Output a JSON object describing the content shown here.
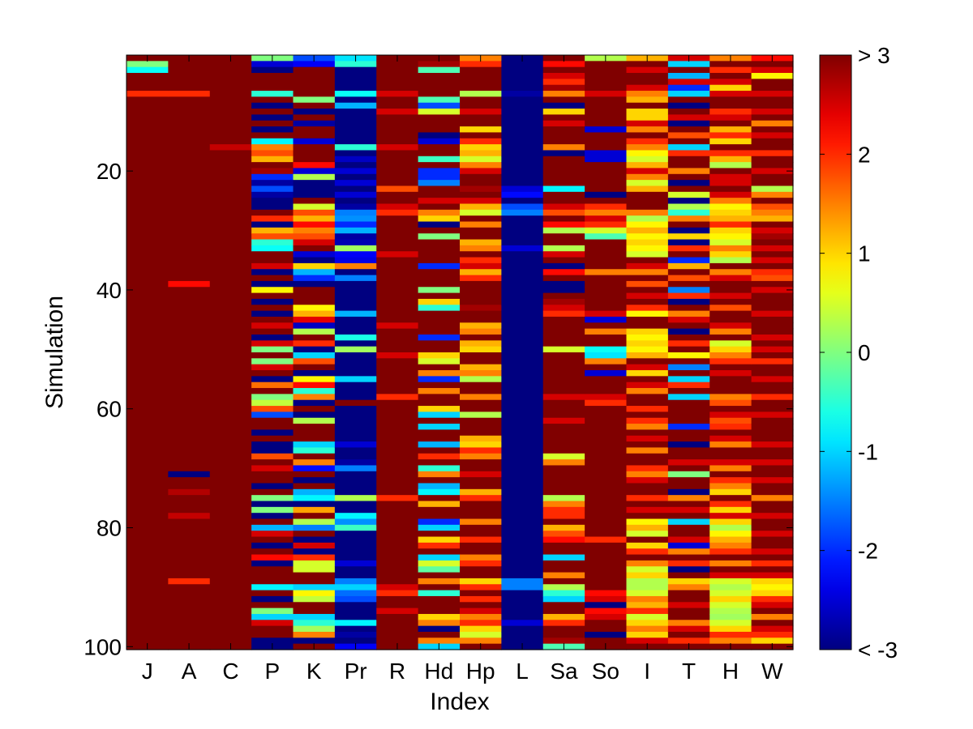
{
  "chart_data": {
    "type": "heatmap",
    "xlabel": "Index",
    "ylabel": "Simulation",
    "categories": [
      "J",
      "A",
      "C",
      "P",
      "K",
      "Pr",
      "R",
      "Hd",
      "Hp",
      "L",
      "Sa",
      "So",
      "I",
      "T",
      "H",
      "W"
    ],
    "y_range": [
      1,
      100
    ],
    "y_ticks": [
      20,
      40,
      60,
      80,
      100
    ],
    "color_range": [
      -3,
      3
    ],
    "colormap": "jet",
    "colorbar": {
      "ticks": [
        {
          "value": 3,
          "label": "> 3"
        },
        {
          "value": 2,
          "label": "2"
        },
        {
          "value": 1,
          "label": "1"
        },
        {
          "value": 0,
          "label": "0"
        },
        {
          "value": -1,
          "label": "-1"
        },
        {
          "value": -2,
          "label": "-2"
        },
        {
          "value": -3,
          "label": "< -3"
        }
      ]
    },
    "columns": {
      "J": "3,0,-0.7,3,3,3,2,3,3,3,3,3,3,3,3,3,3,3,3,3,3,3,3,3,3,3,3,3,3,3,3,3,3,3,3,3,3,3,3,3,3,3,3,3,3,3,3,3,3,3,3,3,3,3,3,3,3,3,3,3,3,3,3,3,3,3,3,3,3,3,3,3,3,3,3,3,3,3,3,3,3,3,3,3,3,3,3,3,3,3,3,3,3,3,3,3,3,3,3,3",
      "A": "3,3,3,3,3,3,2,3,3,3,3,3,3,3,3,3,3,3,3,3,3,3,3,3,3,3,3,3,3,3,3,3,3,3,3,3,3,3,2.2,3,3,3,3,3,3,3,3,3,3,3,3,3,3,3,3,3,3,3,3,3,3,3,3,3,3,3,3,3,3,3,-3,3,3,2.7,3,3,3,2.6,3,3,3,3,3,3,3,3,3,3,2,3,3,3,3,3,3,3,3,3,3,3",
      "C": "3,3,3,3,3,3,3,3,3,3,3,3,3,3,3,2.6,3,3,3,3,3,3,3,3,3,3,3,3,3,3,3,3,3,3,3,3,3,3,3,3,3,3,3,3,3,3,3,3,3,3,3,3,3,3,3,3,3,3,3,3,3,3,3,3,3,3,3,3,3,3,3,3,3,3,3,3,3,3,3,3,3,3,3,3,3,3,3,3,3,3,3,3,3,3,3,3,3,3,3,3",
      "P": "0,-2.5,-3,3,3,3,-0.5,3,-3,3,-3,3,-3,3,-0.8,1.5,1.8,1.2,3,2.8,-2,-2.8,-1.8,-2.8,-3,-3,3,2,-3,1.2,1.8,-0.5,-0.7,3,3,2.5,-3,3,-3,0.8,3,-3,3,-3,3,2.5,3,-3,2.5,0,3,0,2.5,3,-3,1.6,3,0,0.4,1.8,-1.8,3,3,-3,3,-3,-3,1.8,3,2.5,3,3,-3,3,0,-3,0,-3,3,-1.2,2.5,3,-3,3,2.2,-3,3,3,3,-0.8,3,-3,3,0,-1,2.5,3,3,-3,-3",
      "K": "-1.8,-2.3,3,3,3,3,3,0,3,-3,3,-2.8,3,3,-2.5,3,3,3,2.2,-2.5,0.3,-3,-3,-3,3,0.5,1.8,1.2,2.2,1.5,1.8,2.5,3,-2.5,-3,1,-1.2,-2,-3,3,3,3,0.8,1.2,2.4,-2.6,0.3,3,2,-3,-1,1.8,3,-3,0.8,2.2,-0.5,1.5,-3,3,-3,0.3,3,3,3,-1,-0.5,3,1.5,-2.2,3,-3,3,-1.2,-0.8,-3,1.3,3,0.3,-1.5,3,-3,2.5,-3,2,0.5,0.5,3,3,-1,0.8,0.4,3,3,-1,-0.5,0.2,1.5,-3,3",
      "Pr": "-0.9,-0.5,-3,-3,-3,-3,-0.7,-3,-1.2,-3,-3,-3,-3,-3,-3,-0.5,-3,-2.6,-3,-2.5,-3,-2.5,-3,-2.5,-3,-2.8,-1.5,-1.4,-2,-1.2,-2.8,-2.7,0.2,-2.3,-2.4,1.5,-3,-1.5,-3,-3,-3,-3,-3,-1.2,-3,-3,-3,-0.6,-3,0.2,-3,-3,-3,-3,-1,-3,-3,-3,3,-3,-3,-3,-3,-3,-3,-2.5,-3,-3,-2.8,-1.5,-3,-3,-3,-3,0.3,-3,-3,-0.8,-1.4,-0.4,-3,-3,-3,-3,-3,-2.5,-3,-3,-1.5,-1,-1.6,-1.8,-3,-3,-3,-0.8,-3,-2.8,-3,-2.3",
      "R": "3,3,3,3,3,3,2.5,3,3,2.5,3,3,3,3,3,2.5,3,3,3,3,3,3,1.8,3,3,2.5,2,3,3,3,3,3,3,2.5,3,3,3,3,3,3,3,3,3,3,3,2.5,3,3,3,3,2.5,3,3,3,3,3,3,2,3,3,3,3,3,3,3,3,3,3,3,3,3,3,3,3,2,3,3,3,3,3,3,3,3,3,3,3,3,3,3,2.5,2,3,3,2.5,3,3,3,3,3,3",
      "Hd": "3,2.8,-0.3,3,3,3,3,-0.3,-1.8,0.5,3,3,3,-3,-2.5,3,3,-0.4,3,-2,-2,-1.5,3,3,2.5,3,1.5,1,-3,3,0,3,3,3,3,-2,3,3,3,0,3,1,-0.5,3,3,3,3,-2,3,3,1,0.5,3,1.5,-2,3,1.5,3,3,1,-1,3,-1,3,3,-1.2,3,2,3,-0.5,1.5,3,-1.2,-0.8,3,1.2,3,3,-2,-1,3,1,2,3,-1,0.5,-0.2,3,1.5,3,-0.5,3,3,3,1,1.5,-3,3,1.5,-1",
      "Hp": "1.5,2,3,3,3,3,0.3,3,3,2.5,3,3,1,3,2,1,1.2,0.5,1.5,2.5,3,3,2.8,3,2.5,1.2,0.5,3,1.5,3,3,1.2,1.5,3,2,2.5,1.2,2,3,3,3,3,2.8,3,3,1.2,1.5,3,1.2,1,3,3,1.2,1.5,0.3,3,3,1.5,3,3,0.3,3,3,3,1.2,1,2,1.5,3,3,2.5,3,3,1.2,2,3,3,3,1.5,3,3,2,3,3,1.5,2,3,3,1,2,3,2,3,2.5,1.5,2,1,0.5,1.5,3",
      "L": "-3,-3,-3,-3,-3,-3,-2.8,-3,-3,-3,-3,-3,-3,-3,-3,-3,-3,-3,-3,-3,-3,-3,-2.5,-2.2,-3,-1.8,-1.5,-3,-3,-3,-3,-3,-2.5,-3,-3,-3,-3,-3,-3,-3,-3,-3,-3,-3,-3,-3,-3,-3,-3,-3,-3,-3,-3,-3,-3,-3,-3,-3,-3,-3,-3,-3,-3,-3,-3,-3,-3,-3,-3,-3,-3,-3,-3,-3,-3,-3,-3,-3,-3,-3,-3,-3,-3,-3,-3,-3,-3,-3,-1.5,-1.5,-3,-3,-3,-3,-3,-2.5,-3,-3,-3,-3",
      "Sa": "3,2.2,3,2.5,2,2.8,1.5,3,-3,1,3,2.5,3,3,3,1.5,-3,3,3,3,3,3,-0.8,3,3,2.5,1.8,3,2.2,0.3,3,3,0.3,2.5,3,-3,2.2,3,-3,-3,3,2.8,2.5,2,3,3,3,3,3,0.5,3,3,3,3,3,3,3,2.5,3,3,3,2.5,3,3,3,3,3,0.5,1.5,3,3,3,3,3,0.3,1.5,2,2,3,1.2,1.8,2.2,3,3,-1,3,3,1.5,3,0.3,-0.5,-1,3,3,1.2,2,3,3,2.8,-0.3",
      "So": "0.3,3,3,3,3,3,2.5,3,3,3,3,3,-2.5,3,3,3,-2.5,-2.5,3,3,3,3,3,-3,3,2,1.5,2.5,2,0.5,-0.3,3,3,3,3,3,1.5,3,3,3,3,3,3,2.5,-2.5,3,1.5,3,3,-0.7,-0.9,1.5,3,-2.5,3,3,3,2.5,2,3,3,3,3,3,3,3,3,3,3,3,3,3,3,3,3,3,3,3,3,3,3,2,3,3,3,3,3,3,3,3,2.2,2.5,-3,2.2,2.5,3,3,-3,3,3",
      "I": "1.2,3,2.5,3,3,2.5,1.5,1.2,3,1,1,2.5,1.5,3,2,1.5,0.8,0.5,1.2,2.5,1.5,0.5,1.2,3,3,3,1.5,0.3,0.8,1.2,0.8,1,0.8,0.5,3,2.5,1.5,3,1.8,3,2.5,3,2,0.8,3,3,1,0.8,1,0.8,1.2,3,2.5,1,3,2.5,1.5,3,3,2,3,2,1.5,3,2.5,3,1.5,3,3,2,1.5,2.5,3,3,2,3,2.5,3,0.8,1.2,0.5,3,1,2,3,1.5,0.5,1,0.3,0.3,0.5,1.5,1.2,2,0.5,1,1.5,1,2.5,3",
      "T": "2.5,-1,3,-1.2,2.5,-2,-1,3,-3,3,2.5,-3,3,1.8,3,-1,2,3,3,1.5,3,-3,3,0.5,-3,0.3,-0.5,1.5,3,-3,1,-3,2,3,-2,1.2,3,1.8,3,-1.5,2,-3,3,1.5,2.5,3,-3,3,2,3,0.8,3,-1.5,3,-1,2,3,-1,3,3,3,3,-2,3,3,-3,3,3,2.5,3,0,3,3,-3,1.5,3,2.5,3,-1,3,3,2.5,-2.5,1.5,3,2,-3,3,1,1.5,3,3,2.5,3,3,1.5,2.5,3,2,3",
      "H": "1.5,3,2,3,2.5,1,2.5,3,3,2,2.5,3,1.2,2,1,3,2,1.2,0.3,3,2.5,2.5,3,2.5,1.5,0.8,1,1.2,2,1,0.8,0.5,1.5,1,0.3,3,1.5,2.5,3,3,2.5,3,1.8,3,3,2.5,1.5,3,0.5,1,1.5,2,3,2.5,3,3,3,1.5,1.8,3,2.5,1.8,2,3,2.5,1.5,3,3,2.5,1.5,3,2,1.5,1,3,2,1,2.5,1,0.3,0.8,1.2,1.5,2,3,1.5,3,2.5,0.5,0.3,0.5,1,0.5,0.3,0.2,0.5,1,2,1.5,3",
      "W": "2.2,3,2.5,0.8,3,3,2.5,3,3,2.5,3,1.5,3,2.5,3,3,2,3,3,2.5,3,3,0.3,1.5,3,1.8,1.5,1.2,3,2.5,2.8,3,2.5,3,2.5,3,2,1.8,3,2.5,3,3,3,2.5,3,3,3,2.5,3,2.5,3,2,3,3,2.5,3,3,2,3,3,2.5,3,3,3,3,2.5,3,3,2.5,3,3,2.5,3,3,1.5,3,3,2.5,3,3,2.5,3,3,2.5,3,2,3,2.5,1,0.8,1,2,2.5,3,1.5,3,2.5,2,1,3"
    }
  }
}
